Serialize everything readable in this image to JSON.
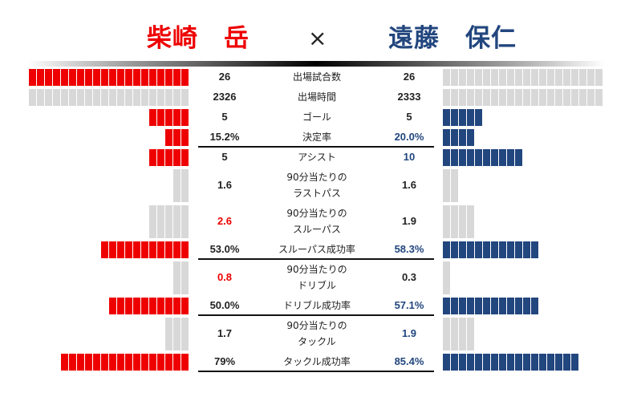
{
  "header": {
    "left_player": "柴崎　岳",
    "right_player": "遠藤　保仁",
    "vs": "×"
  },
  "colors": {
    "left": "#ee0000",
    "right": "#22467e",
    "empty": "#d8d8d8",
    "text": "#222222"
  },
  "stats": [
    {
      "label_lines": [
        "出場試合数"
      ],
      "left": "26",
      "right": "26",
      "left_fill": 20,
      "left_total": 20,
      "right_fill": 0,
      "right_total": 20,
      "left_highlight": false,
      "right_highlight": false,
      "underline": false
    },
    {
      "label_lines": [
        "出場時間"
      ],
      "left": "2326",
      "right": "2333",
      "left_fill": 0,
      "left_total": 20,
      "right_fill": 0,
      "right_total": 20,
      "left_highlight": false,
      "right_highlight": false,
      "underline": false
    },
    {
      "label_lines": [
        "ゴール"
      ],
      "left": "5",
      "right": "5",
      "left_fill": 5,
      "left_total": 5,
      "right_fill": 5,
      "right_total": 5,
      "left_highlight": false,
      "right_highlight": false,
      "underline": false
    },
    {
      "label_lines": [
        "決定率"
      ],
      "left": "15.2%",
      "right": "20.0%",
      "left_fill": 3,
      "left_total": 3,
      "right_fill": 4,
      "right_total": 4,
      "left_highlight": false,
      "right_highlight": true,
      "underline": true
    },
    {
      "label_lines": [
        "アシスト"
      ],
      "left": "5",
      "right": "10",
      "left_fill": 5,
      "left_total": 5,
      "right_fill": 10,
      "right_total": 10,
      "left_highlight": false,
      "right_highlight": true,
      "underline": false
    },
    {
      "label_lines": [
        "90分当たりの",
        "ラストパス"
      ],
      "left": "1.6",
      "right": "1.6",
      "left_fill": 0,
      "left_total": 2,
      "right_fill": 0,
      "right_total": 2,
      "left_highlight": false,
      "right_highlight": false,
      "underline": false
    },
    {
      "label_lines": [
        "90分当たりの",
        "スルーパス"
      ],
      "left": "2.6",
      "right": "1.9",
      "left_fill": 0,
      "left_total": 5,
      "right_fill": 0,
      "right_total": 4,
      "left_highlight": true,
      "right_highlight": false,
      "underline": false
    },
    {
      "label_lines": [
        "スルーパス成功率"
      ],
      "left": "53.0%",
      "right": "58.3%",
      "left_fill": 11,
      "left_total": 11,
      "right_fill": 12,
      "right_total": 12,
      "left_highlight": false,
      "right_highlight": true,
      "underline": true
    },
    {
      "label_lines": [
        "90分当たりの",
        "ドリブル"
      ],
      "left": "0.8",
      "right": "0.3",
      "left_fill": 0,
      "left_total": 2,
      "right_fill": 0,
      "right_total": 1,
      "left_highlight": true,
      "right_highlight": false,
      "underline": false
    },
    {
      "label_lines": [
        "ドリブル成功率"
      ],
      "left": "50.0%",
      "right": "57.1%",
      "left_fill": 10,
      "left_total": 10,
      "right_fill": 12,
      "right_total": 12,
      "left_highlight": false,
      "right_highlight": true,
      "underline": true
    },
    {
      "label_lines": [
        "90分当たりの",
        "タックル"
      ],
      "left": "1.7",
      "right": "1.9",
      "left_fill": 0,
      "left_total": 3,
      "right_fill": 0,
      "right_total": 4,
      "left_highlight": false,
      "right_highlight": true,
      "underline": false
    },
    {
      "label_lines": [
        "タックル成功率"
      ],
      "left": "79%",
      "right": "85.4%",
      "left_fill": 16,
      "left_total": 16,
      "right_fill": 17,
      "right_total": 17,
      "left_highlight": false,
      "right_highlight": true,
      "underline": true
    }
  ]
}
